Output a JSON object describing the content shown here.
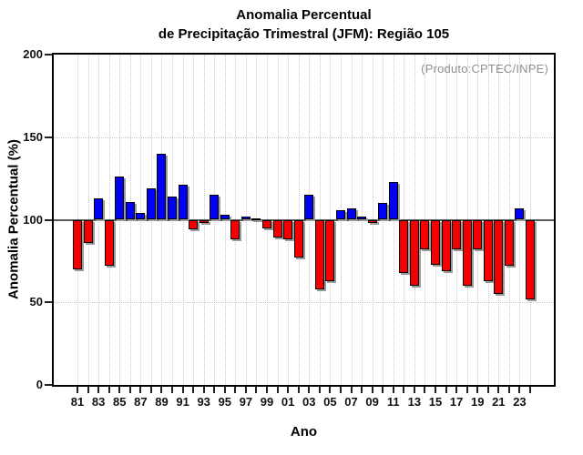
{
  "chart_data": {
    "type": "bar",
    "title_line1": "Anomalia Percentual",
    "title_line2": "de Precipitação Trimestral (JFM): Região 105",
    "xlabel": "Ano",
    "ylabel": "Anomalia Percentual (%)",
    "annotation": "(Produto:CPTEC/INPE)",
    "ylim": [
      0,
      200
    ],
    "yticks": [
      0,
      50,
      100,
      150,
      200
    ],
    "h_gridlines": [
      50,
      100,
      150
    ],
    "baseline": 100,
    "x_label_every": 2,
    "grid": "dotted",
    "legend": "none",
    "categories": [
      "81",
      "82",
      "83",
      "84",
      "85",
      "86",
      "87",
      "88",
      "89",
      "90",
      "91",
      "92",
      "93",
      "94",
      "95",
      "96",
      "97",
      "98",
      "99",
      "00",
      "01",
      "02",
      "03",
      "04",
      "05",
      "06",
      "07",
      "08",
      "09",
      "10",
      "11",
      "12",
      "13",
      "14",
      "15",
      "16",
      "17",
      "18",
      "19",
      "20",
      "21",
      "22",
      "23",
      "24"
    ],
    "values": [
      70,
      86,
      113,
      72,
      126,
      111,
      104,
      119,
      140,
      114,
      121,
      94,
      98,
      115,
      103,
      88,
      102,
      101,
      95,
      89,
      88,
      77,
      115,
      58,
      63,
      106,
      107,
      102,
      98,
      110,
      123,
      68,
      60,
      82,
      73,
      69,
      82,
      60,
      82,
      63,
      55,
      72,
      107,
      52
    ],
    "colors": {
      "above_baseline": "#0000f5",
      "below_baseline": "#f50000",
      "baseline_line": "#5a5a5a",
      "grid": "#c8c8c8",
      "annotation_text": "#8f8f8f",
      "bar_border": "#000000",
      "bar_shadow": "#9c9c9c"
    }
  }
}
